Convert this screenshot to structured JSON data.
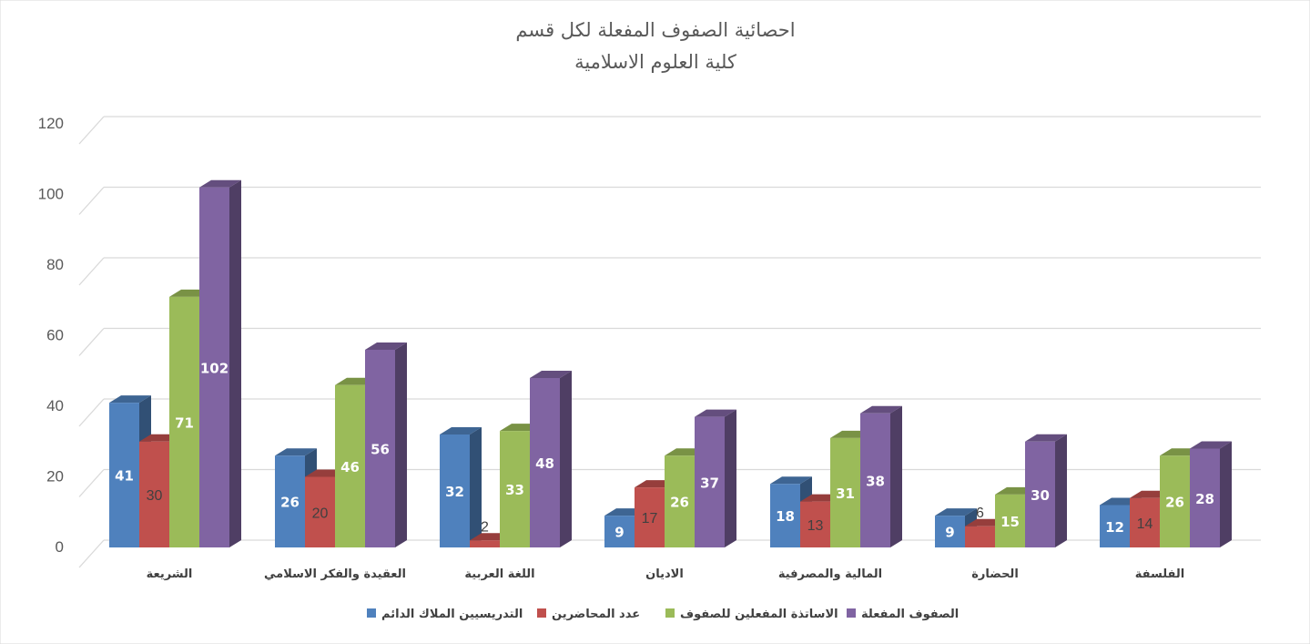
{
  "chart_data": {
    "type": "bar",
    "title_lines": [
      "احصائية الصفوف المفعلة لكل قسم",
      "كلية العلوم الاسلامية"
    ],
    "categories": [
      "الشريعة",
      "العقيدة والفكر الاسلامي",
      "اللغة العربية",
      "الاديان",
      "المالية والمصرفية",
      "الحضارة",
      "الفلسفة"
    ],
    "series": [
      {
        "name": "التدريسيين الملاك الدائم",
        "color": "#4f81bd",
        "values": [
          41,
          26,
          32,
          9,
          18,
          9,
          12
        ],
        "label_style": "inside"
      },
      {
        "name": "عدد المحاضرين",
        "color": "#c0504d",
        "values": [
          30,
          20,
          2,
          17,
          13,
          6,
          14
        ],
        "label_style": "dark"
      },
      {
        "name": "الاساتذة المفعلين للصفوف",
        "color": "#9bbb59",
        "values": [
          71,
          46,
          33,
          26,
          31,
          15,
          26
        ],
        "label_style": "inside"
      },
      {
        "name": "الصفوف المفعلة",
        "color": "#8064a2",
        "values": [
          102,
          56,
          48,
          37,
          38,
          30,
          28
        ],
        "label_style": "inside"
      }
    ],
    "ylim": [
      0,
      120
    ],
    "yticks": [
      "0",
      "20",
      "40",
      "60",
      "80",
      "100",
      "120"
    ],
    "grid": true,
    "legend_position": "bottom"
  }
}
